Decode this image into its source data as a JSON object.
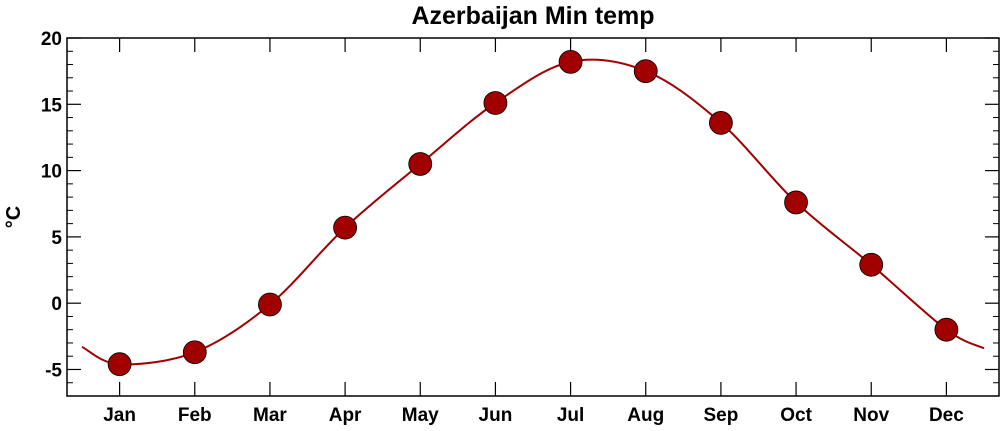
{
  "chart_data": {
    "type": "line",
    "title": "Azerbaijan Min temp",
    "xlabel": "",
    "ylabel": "°C",
    "categories": [
      "Jan",
      "Feb",
      "Mar",
      "Apr",
      "May",
      "Jun",
      "Jul",
      "Aug",
      "Sep",
      "Oct",
      "Nov",
      "Dec"
    ],
    "series": [
      {
        "values": [
          -4.6,
          -3.7,
          -0.1,
          5.7,
          10.5,
          15.1,
          18.2,
          17.5,
          13.6,
          7.6,
          2.9,
          -2.0
        ]
      }
    ],
    "ylim": [
      -7,
      20
    ],
    "yticks": [
      -5,
      0,
      5,
      10,
      15,
      20
    ],
    "ytick_labels": [
      "-5",
      "0",
      "5",
      "10",
      "15",
      "20"
    ],
    "edge_values": {
      "before_jan": -3.3,
      "after_dec": -3.4
    },
    "grid": false,
    "legend": "none",
    "colors": {
      "line": "#a00000",
      "marker": "#a00000",
      "axis": "#000000"
    }
  }
}
